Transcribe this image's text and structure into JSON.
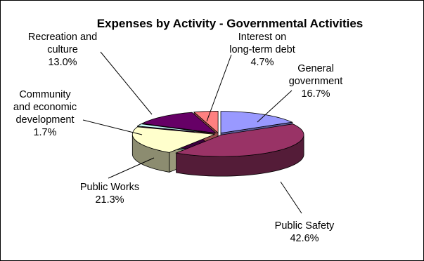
{
  "chart_data": {
    "type": "pie",
    "variant": "3d-exploded-tilted",
    "title": "Expenses by Activity - Governmental Activities",
    "slices": [
      {
        "name": "General government",
        "label_lines": [
          "General",
          "government"
        ],
        "value": 16.7,
        "value_label": "16.7%",
        "color": "#9999FF"
      },
      {
        "name": "Public Safety",
        "label_lines": [
          "Public Safety"
        ],
        "value": 42.6,
        "value_label": "42.6%",
        "color": "#993366"
      },
      {
        "name": "Public Works",
        "label_lines": [
          "Public Works"
        ],
        "value": 21.3,
        "value_label": "21.3%",
        "color": "#FFFFCC"
      },
      {
        "name": "Community and economic development",
        "label_lines": [
          "Community",
          "and economic",
          "development"
        ],
        "value": 1.7,
        "value_label": "1.7%",
        "color": "#CCFFFF"
      },
      {
        "name": "Recreation and culture",
        "label_lines": [
          "Recreation and",
          "culture"
        ],
        "value": 13.0,
        "value_label": "13.0%",
        "color": "#660066"
      },
      {
        "name": "Interest on long-term debt",
        "label_lines": [
          "Interest on",
          "long-term debt"
        ],
        "value": 4.7,
        "value_label": "4.7%",
        "color": "#FF8080"
      }
    ],
    "legend": "none",
    "labels_outside_with_leaders": true
  }
}
